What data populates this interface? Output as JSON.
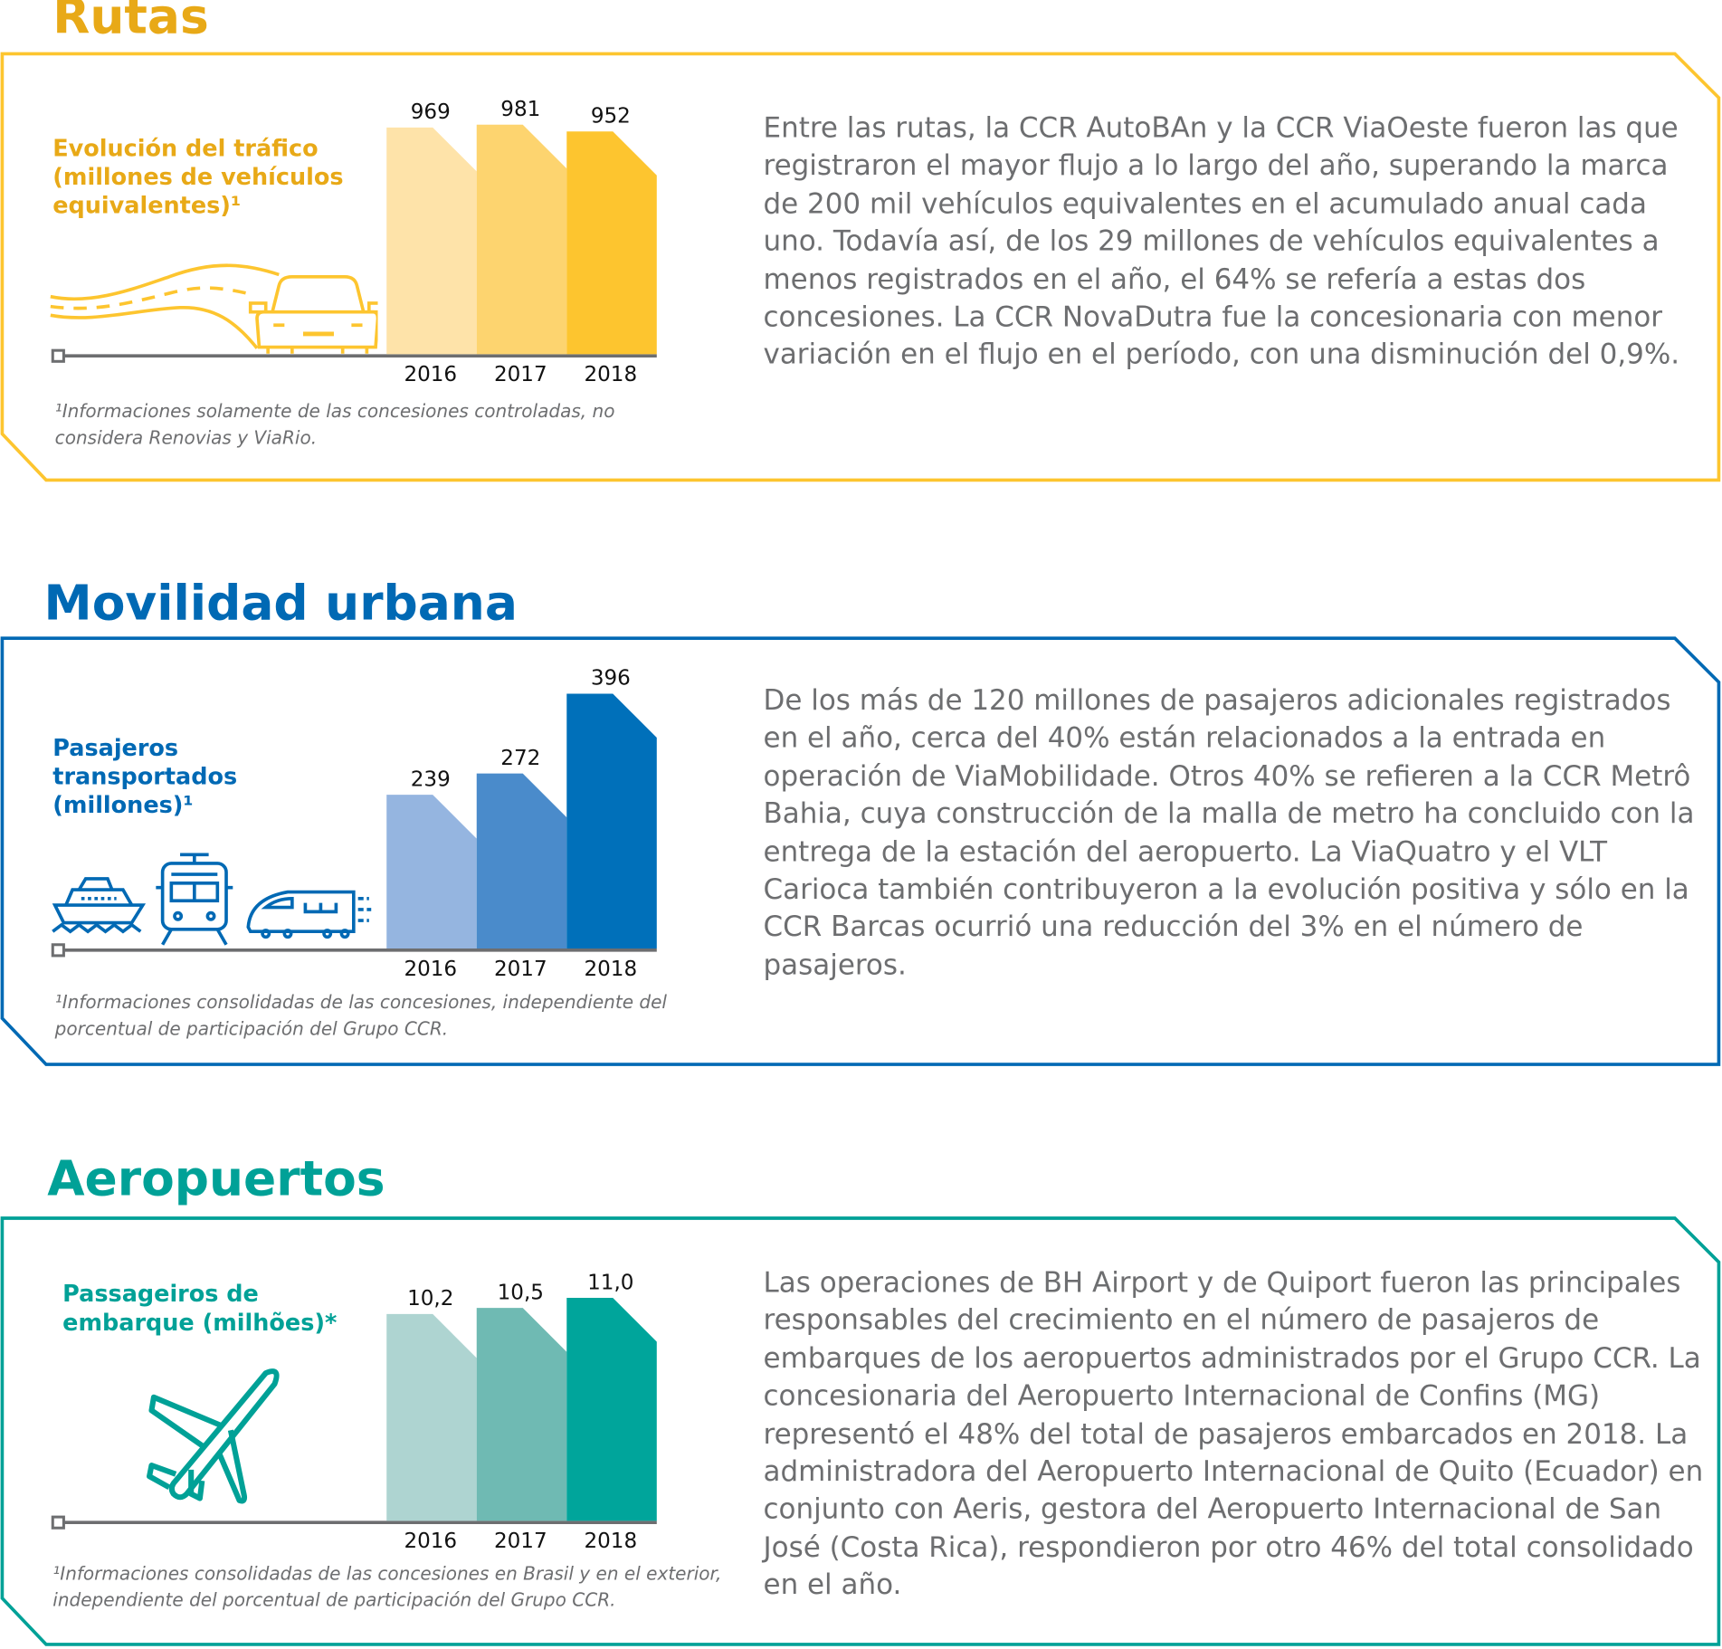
{
  "colors": {
    "rutas": {
      "accent": "#E8A917",
      "frame": "#FDC52F",
      "bars": [
        "#FEE3A9",
        "#FDD46F",
        "#FDC52F"
      ]
    },
    "movilidad": {
      "accent": "#0069B4",
      "frame": "#0069B4",
      "bars": [
        "#95B5E0",
        "#4A8BCB",
        "#0070BA"
      ]
    },
    "aeropuertos": {
      "accent": "#00A197",
      "frame": "#00A197",
      "bars": [
        "#AED4D1",
        "#6FBAB3",
        "#00A59B"
      ]
    },
    "text": "#6D6E70",
    "axis": "#6D6E70"
  },
  "sections": {
    "rutas": {
      "title": "Rutas",
      "chart_title": "Evolución del tráfico (millones de vehículos equivalentes)¹",
      "icon": "car-on-road-icon",
      "footnote": "¹Informaciones solamente de las concesiones controladas, no considera Renovias y ViaRio.",
      "paragraph": "Entre las rutas, la CCR AutoBAn y la CCR ViaOeste fueron las que registraron el mayor flujo a lo largo del año, superando la marca de 200 mil vehículos equivalentes en el acumulado anual cada uno. Todavía así, de los 29 millones de vehículos equivalentes a menos registrados en el año, el 64% se refería a estas dos concesiones. La CCR NovaDutra fue la concesionaria con menor variación en el flujo en el período, con una disminución del 0,9%."
    },
    "movilidad": {
      "title": "Movilidad urbana",
      "chart_title": "Pasajeros transportados (millones)¹",
      "icons": [
        "ferry-icon",
        "train-icon",
        "bullet-train-icon"
      ],
      "footnote": "¹Informaciones consolidadas de las concesiones, independiente del porcentual de participación del Grupo CCR.",
      "paragraph": "De los más de 120 millones de pasajeros adicionales registrados en el año, cerca del 40% están relacionados a la entrada en operación de ViaMobilidade. Otros 40% se refieren a la CCR Metrô Bahia, cuya construcción de la malla de metro ha concluido con la entrega de la estación del aeropuerto. La ViaQuatro y el VLT Carioca también contribuyeron a la evolución positiva y sólo en la CCR Barcas ocurrió una reducción del 3% en el número de pasajeros."
    },
    "aeropuertos": {
      "title": "Aeropuertos",
      "chart_title": "Passageiros de embarque (milhões)*",
      "icon": "airplane-icon",
      "footnote": "¹Informaciones consolidadas de las concesiones en Brasil y en el exterior, independiente del porcentual de participación del Grupo CCR.",
      "paragraph": "Las operaciones de BH Airport y de Quiport fueron las principales responsables del crecimiento en el número de pasajeros de embarques de los aeropuertos administrados por el Grupo CCR. La concesionaria del Aeropuerto Internacional de Confins (MG) representó el 48% del total de pasajeros embarcados en 2018. La administradora del Aeropuerto Internacional de Quito (Ecuador) en conjunto con Aeris, gestora del Aeropuerto Internacional de San José (Costa Rica), respondieron por otro 46% del total consolidado en el año."
    }
  },
  "chart_data": [
    {
      "type": "bar",
      "title": "Evolución del tráfico (millones de vehículos equivalentes)¹",
      "categories": [
        "2016",
        "2017",
        "2018"
      ],
      "values": [
        969,
        981,
        952
      ],
      "labels": [
        "969",
        "981",
        "952"
      ]
    },
    {
      "type": "bar",
      "title": "Pasajeros transportados (millones)¹",
      "categories": [
        "2016",
        "2017",
        "2018"
      ],
      "values": [
        239,
        272,
        396
      ],
      "labels": [
        "239",
        "272",
        "396"
      ]
    },
    {
      "type": "bar",
      "title": "Passageiros de embarque (milhões)*",
      "categories": [
        "2016",
        "2017",
        "2018"
      ],
      "values": [
        10.2,
        10.5,
        11.0
      ],
      "labels": [
        "10,2",
        "10,5",
        "11,0"
      ]
    }
  ]
}
